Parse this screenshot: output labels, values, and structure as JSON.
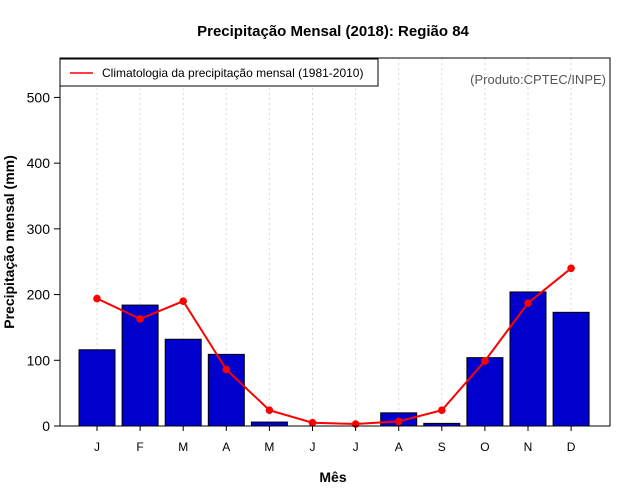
{
  "chart_data": {
    "type": "bar",
    "title": "Precipitação Mensal (2018): Região 84",
    "xlabel": "Mês",
    "ylabel": "Precipitação mensal (mm)",
    "ylim": [
      0,
      560
    ],
    "yticks": [
      0,
      100,
      200,
      300,
      400,
      500
    ],
    "categories": [
      "J",
      "F",
      "M",
      "A",
      "M",
      "J",
      "J",
      "A",
      "S",
      "O",
      "N",
      "D"
    ],
    "values": [
      116,
      184,
      132,
      109,
      6,
      0,
      0,
      20,
      4,
      104,
      204,
      173
    ],
    "bar_color": "#0000cd",
    "line_series": {
      "name": "Climatologia da precipitação mensal (1981-2010)",
      "values": [
        194,
        163,
        190,
        86,
        24,
        5,
        3,
        7,
        24,
        99,
        187,
        240
      ],
      "color": "#ff0000"
    },
    "legend_position": "top-left",
    "credit": "(Produto:CPTEC/INPE)",
    "grid": "vertical dotted"
  }
}
